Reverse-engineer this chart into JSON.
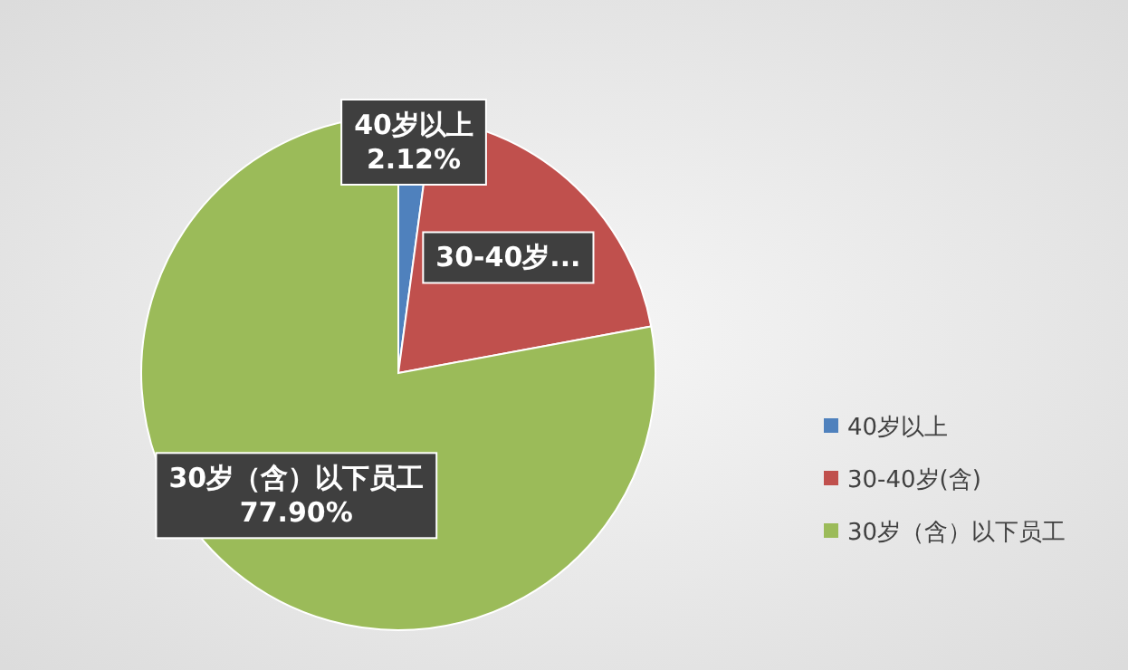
{
  "chart_data": {
    "type": "pie",
    "categories": [
      "40岁以上",
      "30-40岁(含)",
      "30岁（含）以下员工"
    ],
    "values": [
      2.12,
      19.98,
      77.9
    ],
    "colors": [
      "#4f81bd",
      "#c0504d",
      "#9bbb59"
    ],
    "value_labels": [
      "40岁以上\n2.12%",
      "30-40岁...",
      "30岁（含）以下员工\n77.90%"
    ],
    "legend": "right"
  }
}
